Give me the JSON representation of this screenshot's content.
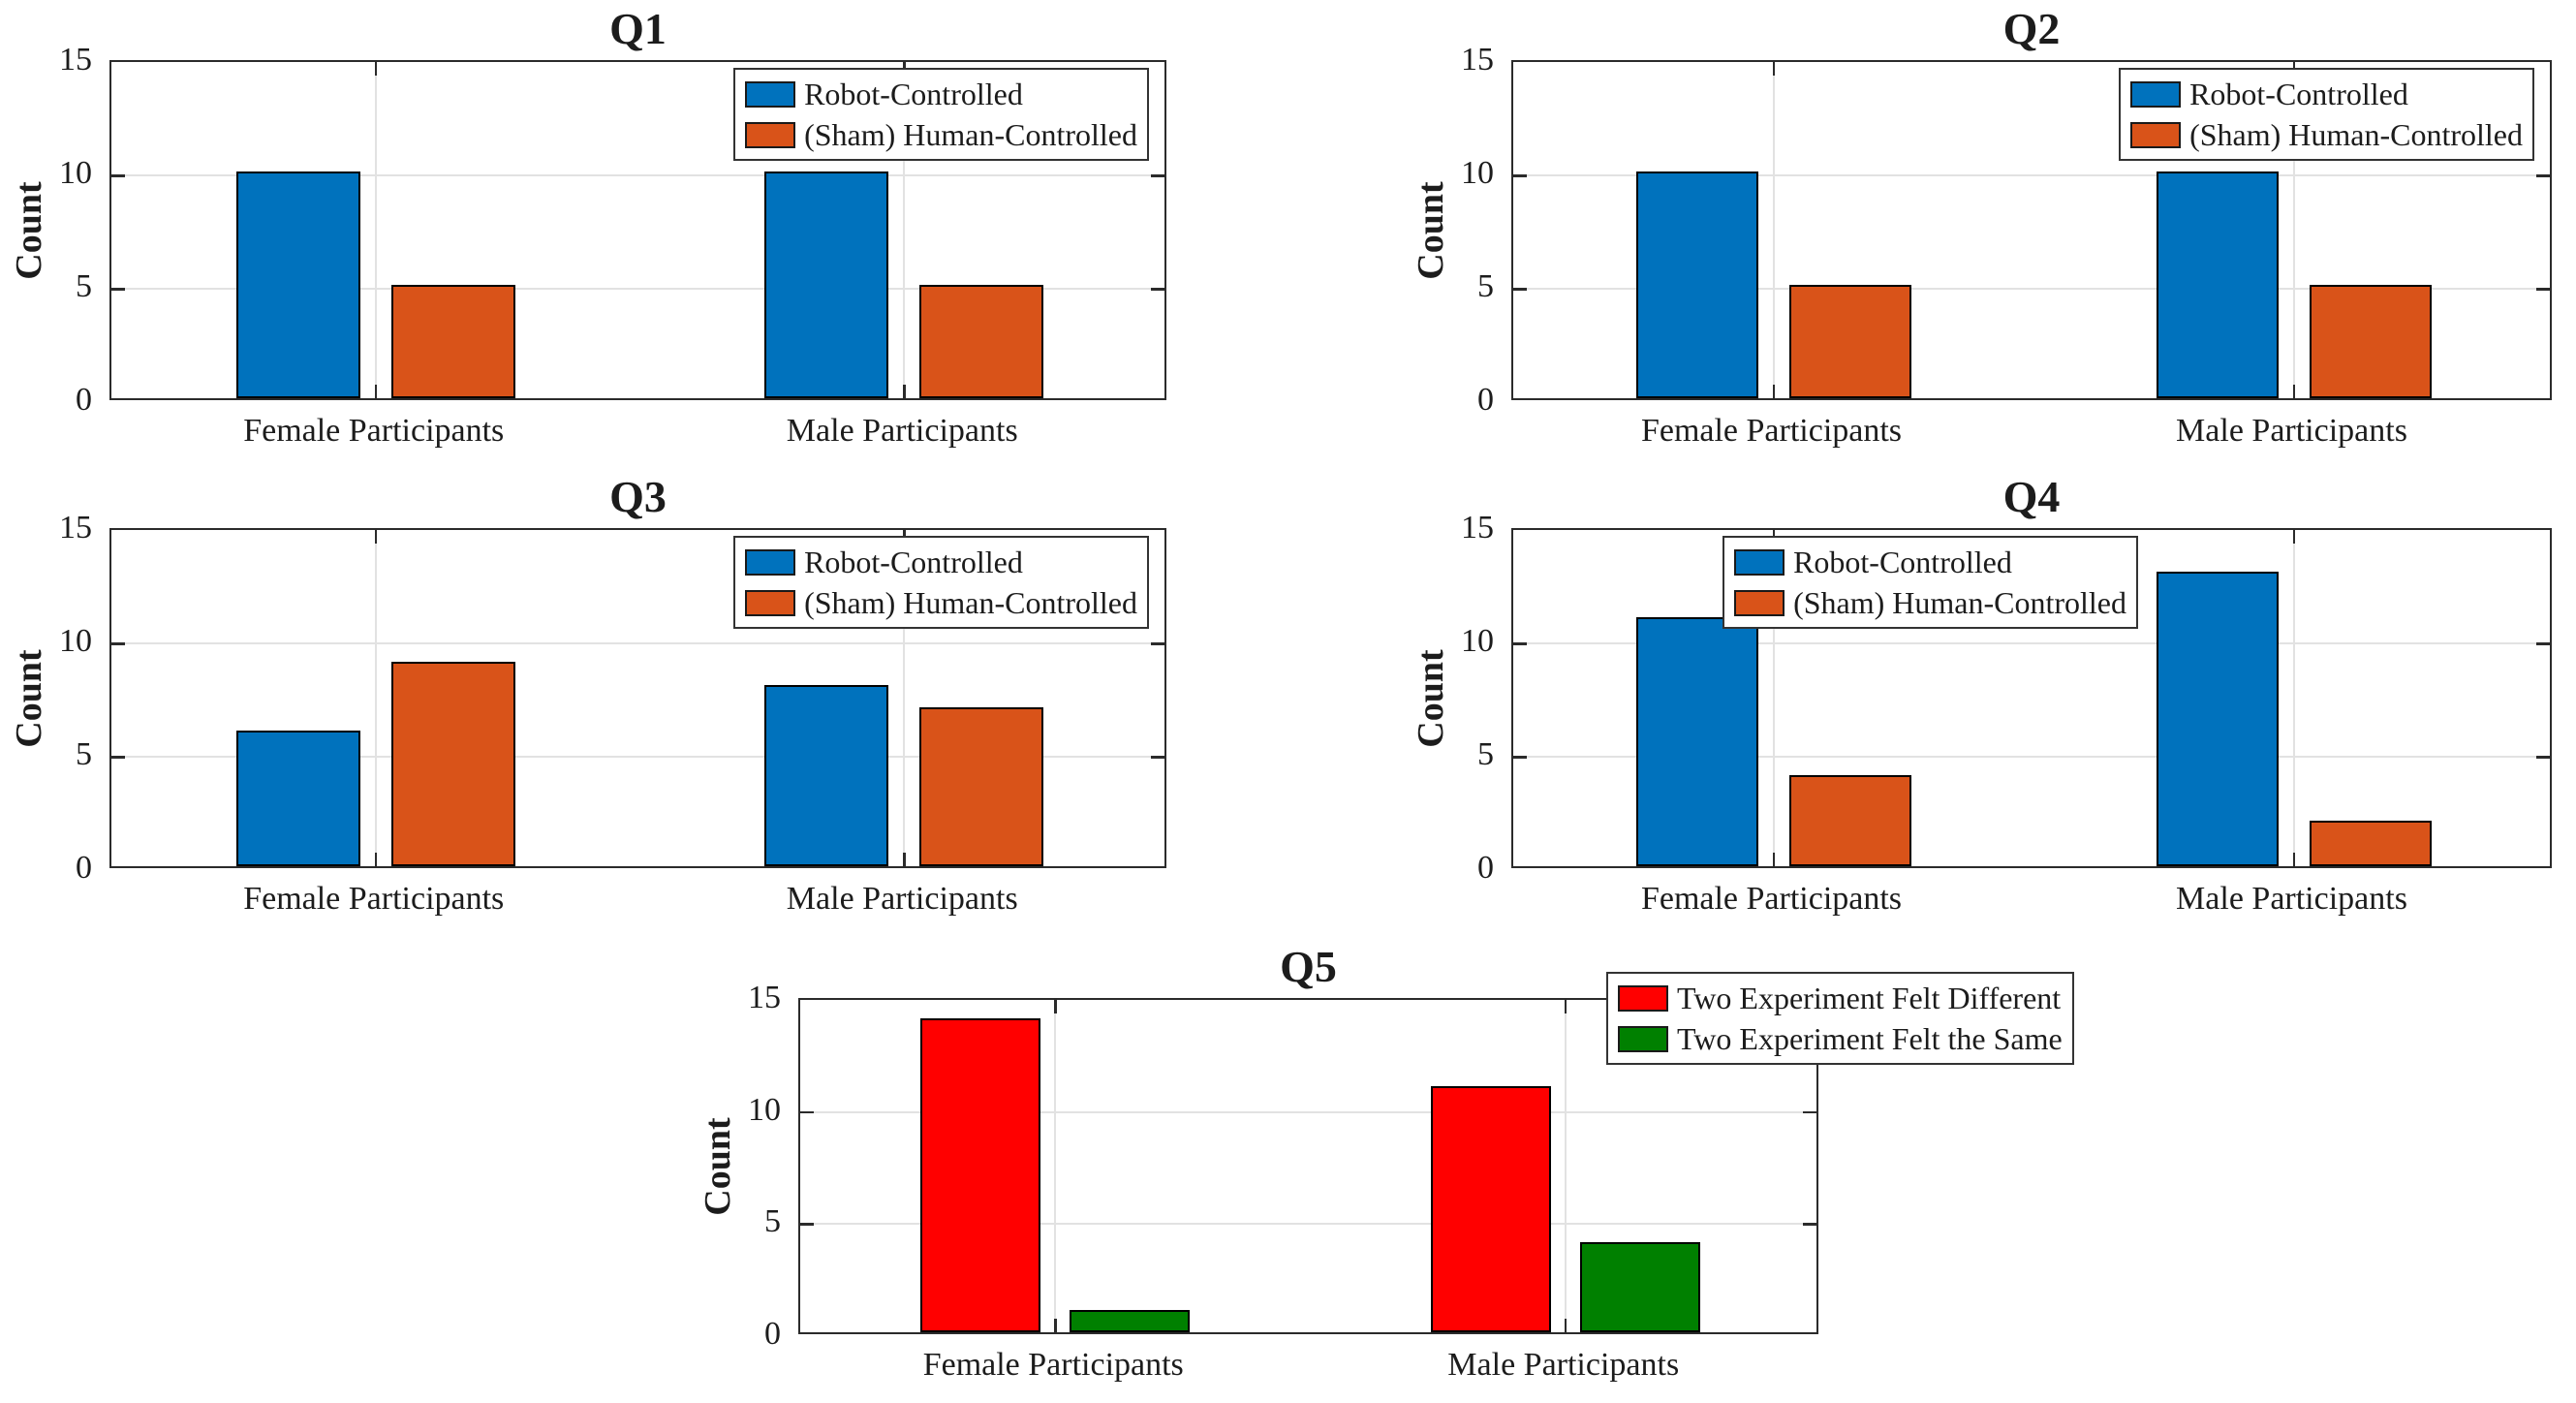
{
  "page": {
    "background": "#FFFFFF"
  },
  "chart_data": [
    {
      "type": "bar",
      "title": "Q1",
      "xlabel": "",
      "ylabel": "Count",
      "categories": [
        "Female Participants",
        "Male Participants"
      ],
      "series": [
        {
          "name": "Robot-Controlled",
          "color": "#0072BD",
          "values": [
            10,
            10
          ]
        },
        {
          "name": "(Sham) Human-Controlled",
          "color": "#D95319",
          "values": [
            5,
            5
          ]
        }
      ],
      "ylim": [
        0,
        15
      ],
      "yticks": [
        0,
        5,
        10,
        15
      ],
      "grid": true,
      "legend_position": "inside top-right"
    },
    {
      "type": "bar",
      "title": "Q2",
      "xlabel": "",
      "ylabel": "Count",
      "categories": [
        "Female Participants",
        "Male Participants"
      ],
      "series": [
        {
          "name": "Robot-Controlled",
          "color": "#0072BD",
          "values": [
            10,
            10
          ]
        },
        {
          "name": "(Sham) Human-Controlled",
          "color": "#D95319",
          "values": [
            5,
            5
          ]
        }
      ],
      "ylim": [
        0,
        15
      ],
      "yticks": [
        0,
        5,
        10,
        15
      ],
      "grid": true,
      "legend_position": "inside top-right"
    },
    {
      "type": "bar",
      "title": "Q3",
      "xlabel": "",
      "ylabel": "Count",
      "categories": [
        "Female Participants",
        "Male Participants"
      ],
      "series": [
        {
          "name": "Robot-Controlled",
          "color": "#0072BD",
          "values": [
            6,
            8
          ]
        },
        {
          "name": "(Sham) Human-Controlled",
          "color": "#D95319",
          "values": [
            9,
            7
          ]
        }
      ],
      "ylim": [
        0,
        15
      ],
      "yticks": [
        0,
        5,
        10,
        15
      ],
      "grid": true,
      "legend_position": "inside top-right"
    },
    {
      "type": "bar",
      "title": "Q4",
      "xlabel": "",
      "ylabel": "Count",
      "categories": [
        "Female Participants",
        "Male Participants"
      ],
      "series": [
        {
          "name": "Robot-Controlled",
          "color": "#0072BD",
          "values": [
            11,
            13
          ]
        },
        {
          "name": "(Sham) Human-Controlled",
          "color": "#D95319",
          "values": [
            4,
            2
          ]
        }
      ],
      "ylim": [
        0,
        15
      ],
      "yticks": [
        0,
        5,
        10,
        15
      ],
      "grid": true,
      "legend_position": "inside top, right of center"
    },
    {
      "type": "bar",
      "title": "Q5",
      "xlabel": "",
      "ylabel": "Count",
      "categories": [
        "Female Participants",
        "Male Participants"
      ],
      "series": [
        {
          "name": "Two Experiment Felt Different",
          "color": "#FF0000",
          "values": [
            14,
            11
          ]
        },
        {
          "name": "Two Experiment Felt the Same",
          "color": "#008000",
          "values": [
            1,
            4
          ]
        }
      ],
      "ylim": [
        0,
        15
      ],
      "yticks": [
        0,
        5,
        10,
        15
      ],
      "grid": true,
      "legend_position": "top-right, overflowing axes top and right"
    }
  ]
}
